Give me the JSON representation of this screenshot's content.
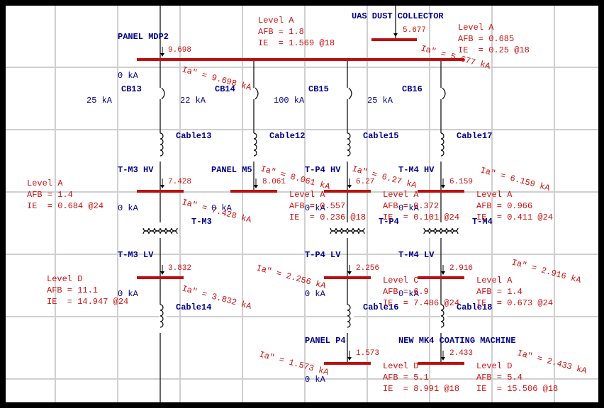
{
  "buses": [
    {
      "name": "PANEL MDP2",
      "fault": "9.698",
      "current": "Ia\" = 9.698 kA",
      "zero": "0 kA"
    },
    {
      "name": "UAS DUST COLLECTOR",
      "fault": "5.677",
      "current": "Ia\" = 5.677 kA"
    },
    {
      "name": "T-M3 HV",
      "fault": "7.428",
      "current": "Ia\" = 7.428 kA",
      "zero": "0 kA"
    },
    {
      "name": "PANEL M5",
      "fault": "8.061",
      "current": "Ia\" = 8.061 kA",
      "zero": "0 kA"
    },
    {
      "name": "T-P4 HV",
      "fault": "6.27",
      "current": "Ia\" = 6.27 kA",
      "zero": "0 kA"
    },
    {
      "name": "T-M4 HV",
      "fault": "6.159",
      "current": "Ia\" = 6.159 kA",
      "zero": "0 kA"
    },
    {
      "name": "T-M3 LV",
      "fault": "3.832",
      "current": "Ia\" = 3.832 kA",
      "zero": "0 kA"
    },
    {
      "name": "T-P4 LV",
      "fault": "2.256",
      "current": "Ia\" = 2.256 kA",
      "zero": "0 kA"
    },
    {
      "name": "T-M4 LV",
      "fault": "2.916",
      "current": "Ia\" = 2.916 kA",
      "zero": "0 kA"
    },
    {
      "name": "PANEL P4",
      "fault": "1.573",
      "current": "Ia\" = 1.573 kA",
      "zero": "0 kA"
    },
    {
      "name": "NEW MK4 COATING MACHINE",
      "fault": "2.433",
      "current": "Ia\" = 2.433 kA"
    }
  ],
  "arc_flash": [
    [
      "Level A",
      "AFB = 1.8",
      "IE  = 1.569 @18"
    ],
    [
      "Level A",
      "AFB = 0.685",
      "IE  = 0.25 @18"
    ],
    [
      "Level A",
      "AFB = 1.4",
      "IE  = 0.684 @24"
    ],
    [
      "Level A",
      "AFB = 0.557",
      "IE  = 0.236 @18"
    ],
    [
      "Level A",
      "AFB = 0.372",
      "IE  = 0.101 @24"
    ],
    [
      "Level A",
      "AFB = 0.966",
      "IE  = 0.411 @24"
    ],
    [
      "Level D",
      "AFB = 11.1",
      "IE  = 14.947 @24"
    ],
    [
      "Level C",
      "AFB = 6.9",
      "IE  = 7.486 @24"
    ],
    [
      "Level A",
      "AFB = 1.4",
      "IE  = 0.673 @24"
    ],
    [
      "Level D",
      "AFB = 5.1",
      "IE  = 8.991 @18"
    ],
    [
      "Level D",
      "AFB = 5.4",
      "IE  = 15.506 @18"
    ]
  ],
  "breakers": [
    {
      "name": "CB13",
      "rating": "25 kA"
    },
    {
      "name": "CB14",
      "rating": "22 kA"
    },
    {
      "name": "CB15",
      "rating": "100 kA"
    },
    {
      "name": "CB16",
      "rating": "25 kA"
    }
  ],
  "cables": [
    "Cable13",
    "Cable12",
    "Cable15",
    "Cable17",
    "Cable14",
    "Cable16",
    "Cable18"
  ],
  "transformers": [
    "T-M3",
    "T-P4",
    "T-M4"
  ]
}
